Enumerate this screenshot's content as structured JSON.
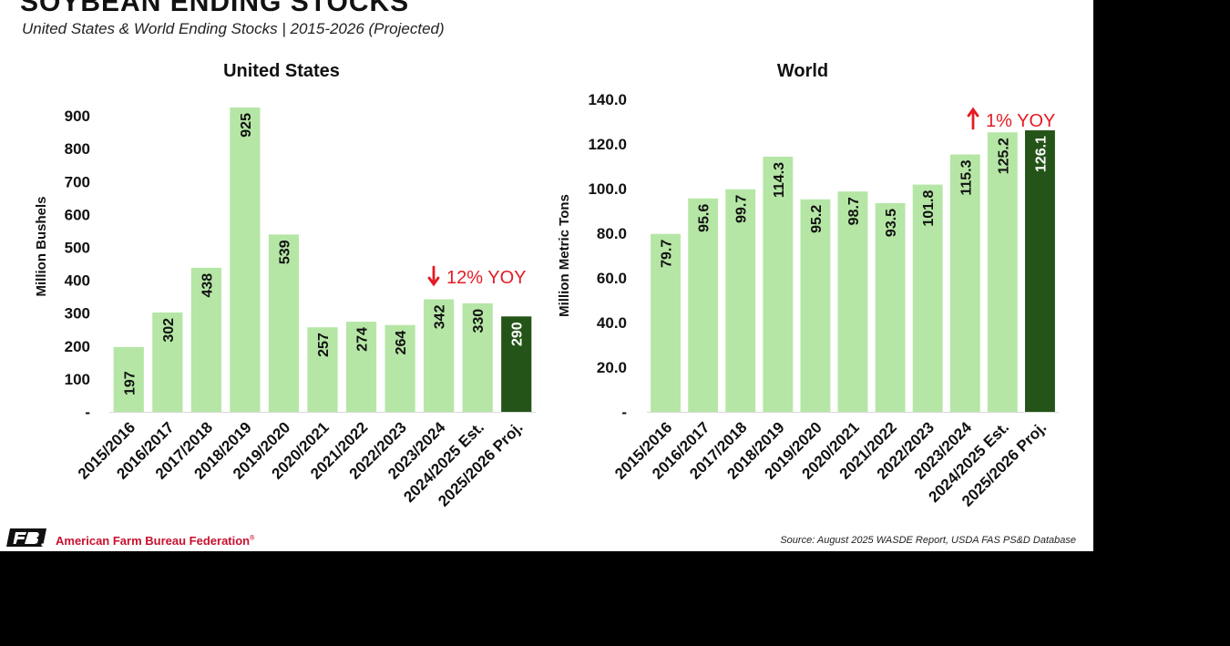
{
  "page": {
    "title": "SOYBEAN ENDING STOCKS",
    "subtitle": "United States & World Ending Stocks | 2015-2026 (Projected)"
  },
  "colors": {
    "bar": "#b5e6a5",
    "highlight_bar": "#245417",
    "annotation": "#e31b23",
    "text": "#111111"
  },
  "chart_data": [
    {
      "type": "bar",
      "title": "United States",
      "xlabel": "",
      "ylabel": "Million Bushels",
      "ylim": [
        0,
        950
      ],
      "yticks": [
        0,
        100,
        200,
        300,
        400,
        500,
        600,
        700,
        800,
        900
      ],
      "ytick_labels": [
        "-",
        "100",
        "200",
        "300",
        "400",
        "500",
        "600",
        "700",
        "800",
        "900"
      ],
      "categories": [
        "2015/2016",
        "2016/2017",
        "2017/2018",
        "2018/2019",
        "2019/2020",
        "2020/2021",
        "2021/2022",
        "2022/2023",
        "2023/2024",
        "2024/2025 Est.",
        "2025/2026 Proj."
      ],
      "values": [
        197,
        302,
        438,
        925,
        539,
        257,
        274,
        264,
        342,
        330,
        290
      ],
      "value_labels": [
        "197",
        "302",
        "438",
        "925",
        "539",
        "257",
        "274",
        "264",
        "342",
        "330",
        "290"
      ],
      "highlight_index": 10,
      "grid": false,
      "annotation": {
        "text": "12% YOY",
        "arrow": "down"
      }
    },
    {
      "type": "bar",
      "title": "World",
      "xlabel": "",
      "ylabel": "Million Metric Tons",
      "ylim": [
        0,
        140
      ],
      "yticks": [
        0,
        20,
        40,
        60,
        80,
        100,
        120,
        140
      ],
      "ytick_labels": [
        "-",
        "20.0",
        "40.0",
        "60.0",
        "80.0",
        "100.0",
        "120.0",
        "140.0"
      ],
      "categories": [
        "2015/2016",
        "2016/2017",
        "2017/2018",
        "2018/2019",
        "2019/2020",
        "2020/2021",
        "2021/2022",
        "2022/2023",
        "2023/2024",
        "2024/2025 Est.",
        "2025/2026 Proj."
      ],
      "values": [
        79.7,
        95.6,
        99.7,
        114.3,
        95.2,
        98.7,
        93.5,
        101.8,
        115.3,
        125.2,
        126.1
      ],
      "value_labels": [
        "79.7",
        "95.6",
        "99.7",
        "114.3",
        "95.2",
        "98.7",
        "93.5",
        "101.8",
        "115.3",
        "125.2",
        "126.1"
      ],
      "highlight_index": 10,
      "grid": false,
      "annotation": {
        "text": "1% YOY",
        "arrow": "up"
      }
    }
  ],
  "footer": {
    "logo_text": "FB.",
    "organization": "American Farm Bureau Federation",
    "trademark": "®",
    "source": "Source: August 2025 WASDE Report, USDA FAS PS&D Database"
  }
}
